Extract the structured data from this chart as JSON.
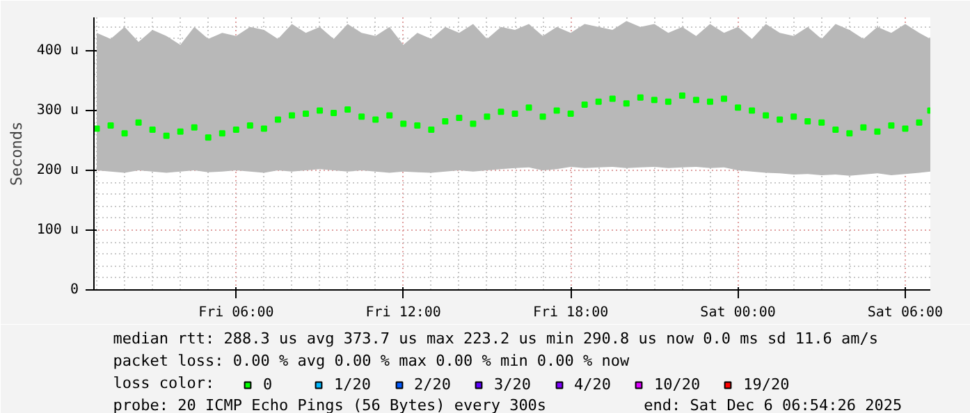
{
  "chart_data": {
    "type": "scatter",
    "ylabel": "Seconds",
    "marker": "square",
    "grid": true,
    "legend": "bottom",
    "legend_title": "loss color:",
    "xlim": [
      "2025-12-05T00:54",
      "2025-12-06T06:54"
    ],
    "ylim": [
      0,
      456
    ],
    "xticks": [
      {
        "value": "2025-12-05T06:00",
        "label": "Fri 06:00"
      },
      {
        "value": "2025-12-05T12:00",
        "label": "Fri 12:00"
      },
      {
        "value": "2025-12-05T18:00",
        "label": "Fri 18:00"
      },
      {
        "value": "2025-12-06T00:00",
        "label": "Sat 00:00"
      },
      {
        "value": "2025-12-06T06:00",
        "label": "Sat 06:00"
      }
    ],
    "yticks": [
      0,
      {
        "value": 100,
        "label": "100 u"
      },
      {
        "value": 200,
        "label": "200 u"
      },
      {
        "value": 300,
        "label": "300 u"
      },
      {
        "value": 400,
        "label": "400 u"
      }
    ],
    "x": [
      "2025-12-05T01:00",
      "2025-12-05T01:30",
      "2025-12-05T02:00",
      "2025-12-05T02:30",
      "2025-12-05T03:00",
      "2025-12-05T03:30",
      "2025-12-05T04:00",
      "2025-12-05T04:30",
      "2025-12-05T05:00",
      "2025-12-05T05:30",
      "2025-12-05T06:00",
      "2025-12-05T06:30",
      "2025-12-05T07:00",
      "2025-12-05T07:30",
      "2025-12-05T08:00",
      "2025-12-05T08:30",
      "2025-12-05T09:00",
      "2025-12-05T09:30",
      "2025-12-05T10:00",
      "2025-12-05T10:30",
      "2025-12-05T11:00",
      "2025-12-05T11:30",
      "2025-12-05T12:00",
      "2025-12-05T12:30",
      "2025-12-05T13:00",
      "2025-12-05T13:30",
      "2025-12-05T14:00",
      "2025-12-05T14:30",
      "2025-12-05T15:00",
      "2025-12-05T15:30",
      "2025-12-05T16:00",
      "2025-12-05T16:30",
      "2025-12-05T17:00",
      "2025-12-05T17:30",
      "2025-12-05T18:00",
      "2025-12-05T18:30",
      "2025-12-05T19:00",
      "2025-12-05T19:30",
      "2025-12-05T20:00",
      "2025-12-05T20:30",
      "2025-12-05T21:00",
      "2025-12-05T21:30",
      "2025-12-05T22:00",
      "2025-12-05T22:30",
      "2025-12-05T23:00",
      "2025-12-05T23:30",
      "2025-12-06T00:00",
      "2025-12-06T00:30",
      "2025-12-06T01:00",
      "2025-12-06T01:30",
      "2025-12-06T02:00",
      "2025-12-06T02:30",
      "2025-12-06T03:00",
      "2025-12-06T03:30",
      "2025-12-06T04:00",
      "2025-12-06T04:30",
      "2025-12-06T05:00",
      "2025-12-06T05:30",
      "2025-12-06T06:00",
      "2025-12-06T06:30",
      "2025-12-06T06:54"
    ],
    "series": [
      {
        "name": "0",
        "color": "#00ff00",
        "values": [
          270,
          275,
          262,
          280,
          268,
          258,
          265,
          272,
          255,
          262,
          268,
          275,
          270,
          285,
          292,
          295,
          300,
          296,
          302,
          290,
          285,
          292,
          278,
          275,
          268,
          282,
          288,
          278,
          290,
          298,
          295,
          305,
          290,
          300,
          295,
          310,
          315,
          320,
          312,
          322,
          318,
          315,
          325,
          318,
          315,
          320,
          305,
          300,
          292,
          285,
          290,
          282,
          280,
          268,
          262,
          272,
          265,
          275,
          270,
          280,
          300
        ],
        "lower": [
          200,
          198,
          196,
          200,
          198,
          196,
          198,
          200,
          197,
          198,
          200,
          198,
          196,
          200,
          198,
          200,
          202,
          200,
          198,
          200,
          198,
          196,
          198,
          197,
          196,
          198,
          200,
          198,
          200,
          202,
          204,
          205,
          200,
          202,
          206,
          204,
          205,
          206,
          204,
          205,
          206,
          204,
          205,
          206,
          204,
          205,
          200,
          198,
          196,
          195,
          193,
          194,
          192,
          193,
          191,
          193,
          195,
          192,
          194,
          196,
          198
        ],
        "upper": [
          430,
          420,
          440,
          415,
          435,
          425,
          410,
          440,
          420,
          430,
          425,
          440,
          435,
          420,
          445,
          430,
          440,
          420,
          445,
          430,
          425,
          440,
          410,
          430,
          420,
          440,
          430,
          445,
          420,
          440,
          435,
          445,
          425,
          440,
          430,
          445,
          440,
          435,
          450,
          440,
          445,
          430,
          440,
          425,
          445,
          430,
          440,
          420,
          445,
          430,
          425,
          440,
          420,
          445,
          435,
          420,
          440,
          430,
          445,
          430,
          420
        ]
      },
      {
        "name": "1/20",
        "color": "#00b8ff",
        "values": [
          null,
          null,
          null,
          null,
          null,
          null,
          null,
          null,
          null,
          null,
          null,
          null,
          null,
          null,
          null,
          null,
          null,
          null,
          null,
          null,
          null,
          null,
          null,
          null,
          null,
          null,
          null,
          null,
          null,
          null,
          null,
          null,
          null,
          null,
          null,
          null,
          null,
          null,
          null,
          null,
          null,
          null,
          null,
          null,
          null,
          null,
          null,
          null,
          null,
          null,
          null,
          null,
          null,
          null,
          null,
          null,
          null,
          null,
          null,
          null,
          null
        ]
      },
      {
        "name": "2/20",
        "color": "#0059ff",
        "values": [
          null,
          null,
          null,
          null,
          null,
          null,
          null,
          null,
          null,
          null,
          null,
          null,
          null,
          null,
          null,
          null,
          null,
          null,
          null,
          null,
          null,
          null,
          null,
          null,
          null,
          null,
          null,
          null,
          null,
          null,
          null,
          null,
          null,
          null,
          null,
          null,
          null,
          null,
          null,
          null,
          null,
          null,
          null,
          null,
          null,
          null,
          null,
          null,
          null,
          null,
          null,
          null,
          null,
          null,
          null,
          null,
          null,
          null,
          null,
          null,
          null
        ]
      },
      {
        "name": "3/20",
        "color": "#5e00ff",
        "values": [
          null,
          null,
          null,
          null,
          null,
          null,
          null,
          null,
          null,
          null,
          null,
          null,
          null,
          null,
          null,
          null,
          null,
          null,
          null,
          null,
          null,
          null,
          null,
          null,
          null,
          null,
          null,
          null,
          null,
          null,
          null,
          null,
          null,
          null,
          null,
          null,
          null,
          null,
          null,
          null,
          null,
          null,
          null,
          null,
          null,
          null,
          null,
          null,
          null,
          null,
          null,
          null,
          null,
          null,
          null,
          null,
          null,
          null,
          null,
          null,
          null
        ]
      },
      {
        "name": "4/20",
        "color": "#7e00ff",
        "values": [
          null,
          null,
          null,
          null,
          null,
          null,
          null,
          null,
          null,
          null,
          null,
          null,
          null,
          null,
          null,
          null,
          null,
          null,
          null,
          null,
          null,
          null,
          null,
          null,
          null,
          null,
          null,
          null,
          null,
          null,
          null,
          null,
          null,
          null,
          null,
          null,
          null,
          null,
          null,
          null,
          null,
          null,
          null,
          null,
          null,
          null,
          null,
          null,
          null,
          null,
          null,
          null,
          null,
          null,
          null,
          null,
          null,
          null,
          null,
          null,
          null
        ]
      },
      {
        "name": "10/20",
        "color": "#dd00ff",
        "values": [
          null,
          null,
          null,
          null,
          null,
          null,
          null,
          null,
          null,
          null,
          null,
          null,
          null,
          null,
          null,
          null,
          null,
          null,
          null,
          null,
          null,
          null,
          null,
          null,
          null,
          null,
          null,
          null,
          null,
          null,
          null,
          null,
          null,
          null,
          null,
          null,
          null,
          null,
          null,
          null,
          null,
          null,
          null,
          null,
          null,
          null,
          null,
          null,
          null,
          null,
          null,
          null,
          null,
          null,
          null,
          null,
          null,
          null,
          null,
          null,
          null
        ]
      },
      {
        "name": "19/20",
        "color": "#ff0000",
        "values": [
          null,
          null,
          null,
          null,
          null,
          null,
          null,
          null,
          null,
          null,
          null,
          null,
          null,
          null,
          null,
          null,
          null,
          null,
          null,
          null,
          null,
          null,
          null,
          null,
          null,
          null,
          null,
          null,
          null,
          null,
          null,
          null,
          null,
          null,
          null,
          null,
          null,
          null,
          null,
          null,
          null,
          null,
          null,
          null,
          null,
          null,
          null,
          null,
          null,
          null,
          null,
          null,
          null,
          null,
          null,
          null,
          null,
          null,
          null,
          null,
          null
        ]
      }
    ],
    "annotations": [
      "median rtt:  288.3 us avg   373.7 us max   223.2 us min   290.8 us now   0.0 ms sd   11.6    am/s",
      "packet loss: 0.00 % avg   0.00 % max   0.00 % min   0.00 % now",
      "probe:       20 ICMP Echo Pings (56 Bytes) every 300s",
      "end: Sat Dec  6 06:54:26 2025"
    ]
  }
}
